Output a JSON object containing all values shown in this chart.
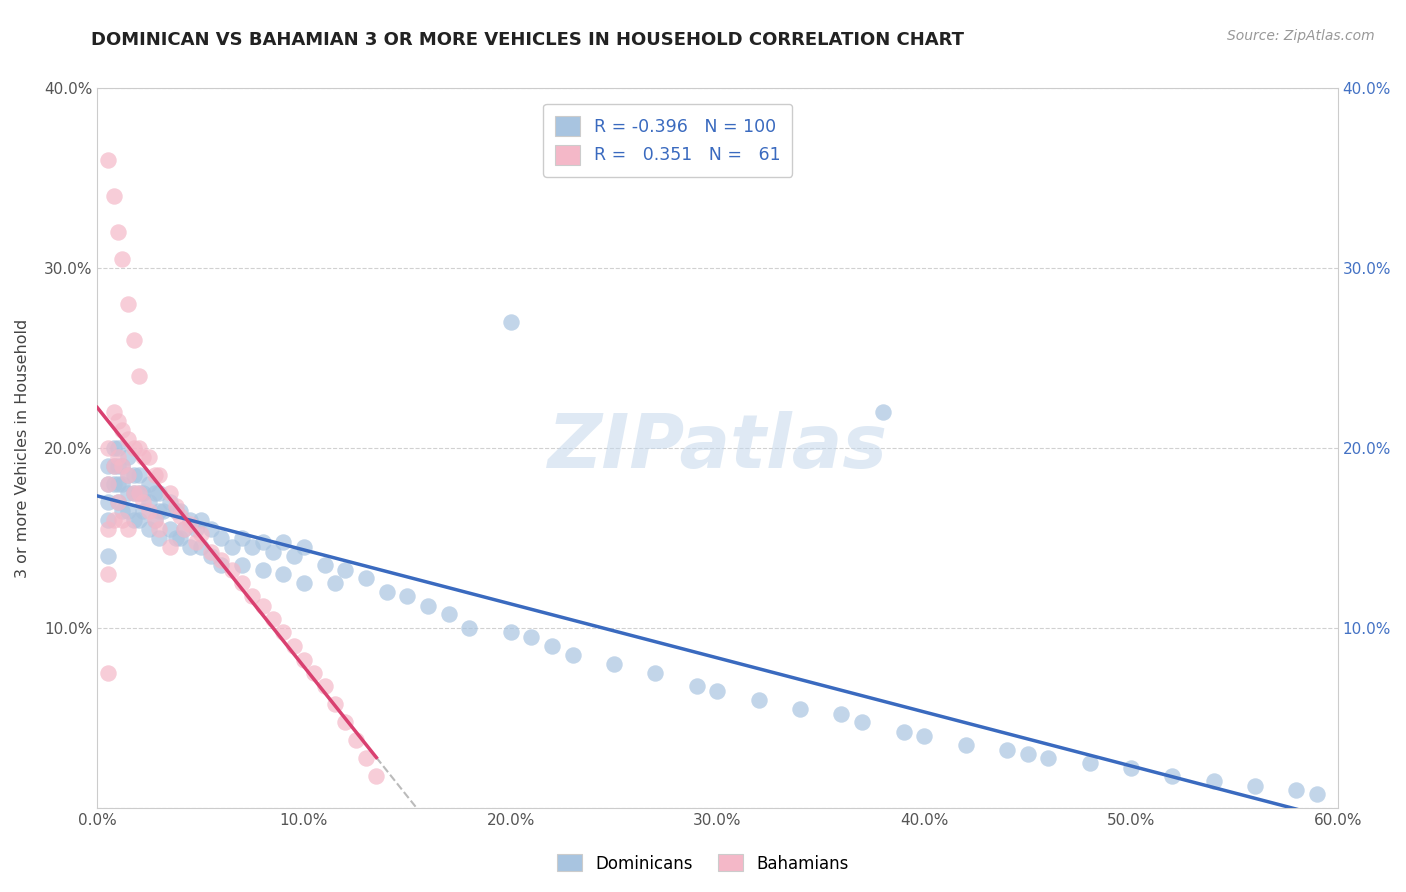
{
  "title": "DOMINICAN VS BAHAMIAN 3 OR MORE VEHICLES IN HOUSEHOLD CORRELATION CHART",
  "source": "Source: ZipAtlas.com",
  "ylabel": "3 or more Vehicles in Household",
  "watermark": "ZIPatlas",
  "xlim": [
    0.0,
    0.6
  ],
  "ylim": [
    0.0,
    0.4
  ],
  "xticks": [
    0.0,
    0.1,
    0.2,
    0.3,
    0.4,
    0.5,
    0.6
  ],
  "xticklabels": [
    "0.0%",
    "10.0%",
    "20.0%",
    "30.0%",
    "40.0%",
    "50.0%",
    "60.0%"
  ],
  "yticks": [
    0.0,
    0.1,
    0.2,
    0.3,
    0.4
  ],
  "yticklabels": [
    "",
    "10.0%",
    "20.0%",
    "30.0%",
    "40.0%"
  ],
  "right_yticklabels": [
    "",
    "10.0%",
    "20.0%",
    "30.0%",
    "40.0%"
  ],
  "dominican_color": "#a8c4e0",
  "bahamian_color": "#f4b8c8",
  "dominican_line_color": "#3a6abf",
  "bahamian_line_color": "#d94070",
  "legend_label1": "Dominicans",
  "legend_label2": "Bahamians",
  "dom_x": [
    0.005,
    0.005,
    0.005,
    0.005,
    0.005,
    0.008,
    0.008,
    0.008,
    0.01,
    0.01,
    0.01,
    0.01,
    0.012,
    0.012,
    0.012,
    0.015,
    0.015,
    0.015,
    0.015,
    0.018,
    0.018,
    0.018,
    0.02,
    0.02,
    0.02,
    0.022,
    0.022,
    0.025,
    0.025,
    0.025,
    0.028,
    0.028,
    0.03,
    0.03,
    0.03,
    0.032,
    0.035,
    0.035,
    0.038,
    0.038,
    0.04,
    0.04,
    0.042,
    0.045,
    0.045,
    0.048,
    0.05,
    0.05,
    0.055,
    0.055,
    0.06,
    0.06,
    0.065,
    0.07,
    0.07,
    0.075,
    0.08,
    0.08,
    0.085,
    0.09,
    0.09,
    0.095,
    0.1,
    0.1,
    0.11,
    0.115,
    0.12,
    0.13,
    0.14,
    0.15,
    0.16,
    0.17,
    0.18,
    0.2,
    0.21,
    0.22,
    0.23,
    0.25,
    0.27,
    0.29,
    0.3,
    0.32,
    0.34,
    0.36,
    0.37,
    0.39,
    0.4,
    0.42,
    0.44,
    0.45,
    0.46,
    0.48,
    0.5,
    0.52,
    0.54,
    0.56,
    0.58,
    0.59,
    0.2,
    0.38
  ],
  "dom_y": [
    0.19,
    0.18,
    0.17,
    0.16,
    0.14,
    0.2,
    0.19,
    0.18,
    0.2,
    0.19,
    0.18,
    0.17,
    0.19,
    0.18,
    0.165,
    0.195,
    0.185,
    0.175,
    0.165,
    0.185,
    0.175,
    0.16,
    0.185,
    0.175,
    0.16,
    0.175,
    0.165,
    0.18,
    0.17,
    0.155,
    0.175,
    0.16,
    0.175,
    0.165,
    0.15,
    0.165,
    0.17,
    0.155,
    0.165,
    0.15,
    0.165,
    0.15,
    0.155,
    0.16,
    0.145,
    0.155,
    0.16,
    0.145,
    0.155,
    0.14,
    0.15,
    0.135,
    0.145,
    0.15,
    0.135,
    0.145,
    0.148,
    0.132,
    0.142,
    0.148,
    0.13,
    0.14,
    0.145,
    0.125,
    0.135,
    0.125,
    0.132,
    0.128,
    0.12,
    0.118,
    0.112,
    0.108,
    0.1,
    0.098,
    0.095,
    0.09,
    0.085,
    0.08,
    0.075,
    0.068,
    0.065,
    0.06,
    0.055,
    0.052,
    0.048,
    0.042,
    0.04,
    0.035,
    0.032,
    0.03,
    0.028,
    0.025,
    0.022,
    0.018,
    0.015,
    0.012,
    0.01,
    0.008,
    0.27,
    0.22
  ],
  "bah_x": [
    0.005,
    0.005,
    0.005,
    0.005,
    0.005,
    0.008,
    0.008,
    0.008,
    0.01,
    0.01,
    0.01,
    0.012,
    0.012,
    0.012,
    0.015,
    0.015,
    0.015,
    0.018,
    0.018,
    0.02,
    0.02,
    0.022,
    0.022,
    0.025,
    0.025,
    0.028,
    0.028,
    0.03,
    0.03,
    0.035,
    0.035,
    0.038,
    0.04,
    0.042,
    0.045,
    0.048,
    0.05,
    0.055,
    0.06,
    0.065,
    0.07,
    0.075,
    0.08,
    0.085,
    0.09,
    0.095,
    0.1,
    0.105,
    0.11,
    0.115,
    0.12,
    0.125,
    0.13,
    0.135,
    0.005,
    0.008,
    0.01,
    0.012,
    0.015,
    0.018,
    0.02
  ],
  "bah_y": [
    0.2,
    0.18,
    0.155,
    0.13,
    0.075,
    0.22,
    0.19,
    0.16,
    0.215,
    0.195,
    0.17,
    0.21,
    0.19,
    0.16,
    0.205,
    0.185,
    0.155,
    0.2,
    0.175,
    0.2,
    0.175,
    0.195,
    0.17,
    0.195,
    0.165,
    0.185,
    0.16,
    0.185,
    0.155,
    0.175,
    0.145,
    0.168,
    0.162,
    0.155,
    0.158,
    0.148,
    0.152,
    0.142,
    0.138,
    0.132,
    0.125,
    0.118,
    0.112,
    0.105,
    0.098,
    0.09,
    0.082,
    0.075,
    0.068,
    0.058,
    0.048,
    0.038,
    0.028,
    0.018,
    0.36,
    0.34,
    0.32,
    0.305,
    0.28,
    0.26,
    0.24
  ]
}
